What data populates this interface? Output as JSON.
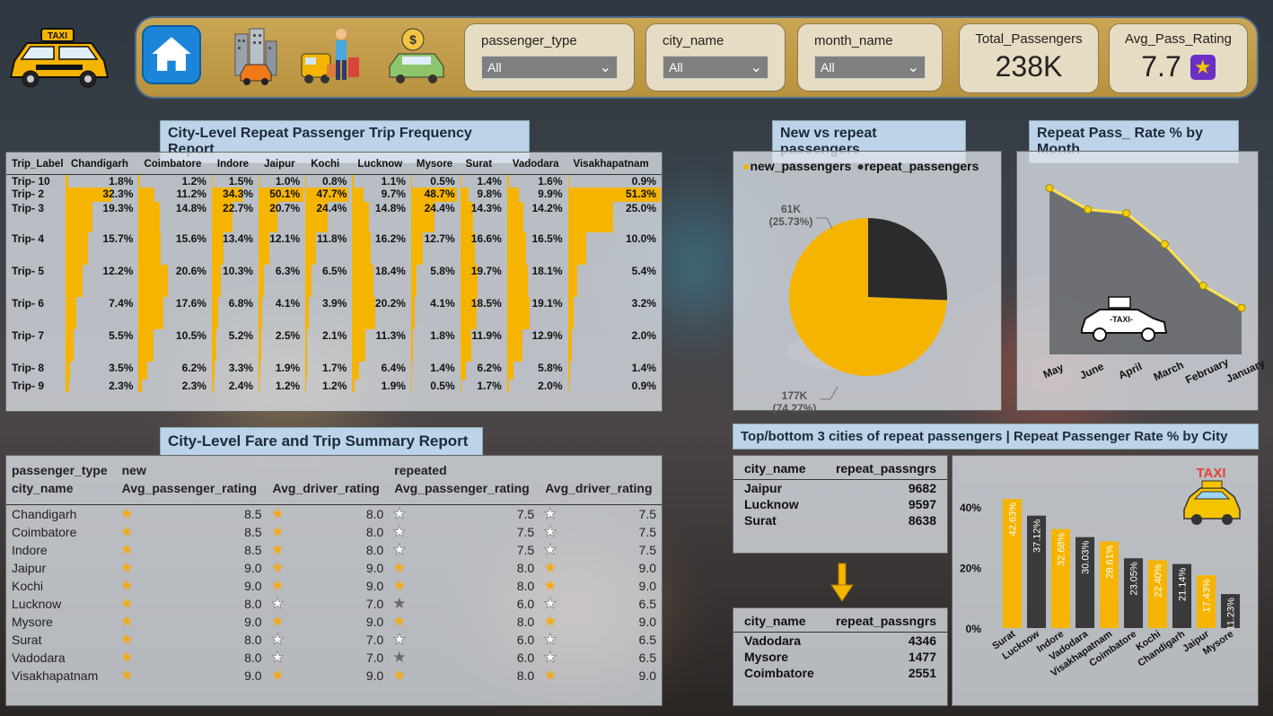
{
  "header": {
    "home_label": "Home",
    "slicers": [
      {
        "label": "passenger_type",
        "value": "All"
      },
      {
        "label": "city_name",
        "value": "All"
      },
      {
        "label": "month_name",
        "value": "All"
      }
    ],
    "kpis": [
      {
        "label": "Total_Passengers",
        "value": "238K"
      },
      {
        "label": "Avg_Pass_Rating",
        "value": "7.7"
      }
    ]
  },
  "freq_report": {
    "title": "City-Level Repeat Passenger Trip Frequency Report",
    "columns": [
      "Trip_Label",
      "Chandigarh",
      "Coimbatore",
      "Indore",
      "Jaipur",
      "Kochi",
      "Lucknow",
      "Mysore",
      "Surat",
      "Vadodara",
      "Visakhapatnam"
    ],
    "rows": [
      {
        "label": "Trip- 10",
        "values": [
          "1.8%",
          "1.2%",
          "1.5%",
          "1.0%",
          "0.8%",
          "1.1%",
          "0.5%",
          "1.4%",
          "1.6%",
          "0.9%"
        ]
      },
      {
        "label": "Trip- 2",
        "values": [
          "32.3%",
          "11.2%",
          "34.3%",
          "50.1%",
          "47.7%",
          "9.7%",
          "48.7%",
          "9.8%",
          "9.9%",
          "51.3%"
        ]
      },
      {
        "label": "Trip- 3",
        "values": [
          "19.3%",
          "14.8%",
          "22.7%",
          "20.7%",
          "24.4%",
          "14.8%",
          "24.4%",
          "14.3%",
          "14.2%",
          "25.0%"
        ]
      },
      {
        "label": "Trip- 4",
        "values": [
          "15.7%",
          "15.6%",
          "13.4%",
          "12.1%",
          "11.8%",
          "16.2%",
          "12.7%",
          "16.6%",
          "16.5%",
          "10.0%"
        ]
      },
      {
        "label": "Trip- 5",
        "values": [
          "12.2%",
          "20.6%",
          "10.3%",
          "6.3%",
          "6.5%",
          "18.4%",
          "5.8%",
          "19.7%",
          "18.1%",
          "5.4%"
        ]
      },
      {
        "label": "Trip- 6",
        "values": [
          "7.4%",
          "17.6%",
          "6.8%",
          "4.1%",
          "3.9%",
          "20.2%",
          "4.1%",
          "18.5%",
          "19.1%",
          "3.2%"
        ]
      },
      {
        "label": "Trip- 7",
        "values": [
          "5.5%",
          "10.5%",
          "5.2%",
          "2.5%",
          "2.1%",
          "11.3%",
          "1.8%",
          "11.9%",
          "12.9%",
          "2.0%"
        ]
      },
      {
        "label": "Trip- 8",
        "values": [
          "3.5%",
          "6.2%",
          "3.3%",
          "1.9%",
          "1.7%",
          "6.4%",
          "1.4%",
          "6.2%",
          "5.8%",
          "1.4%"
        ]
      },
      {
        "label": "Trip- 9",
        "values": [
          "2.3%",
          "2.3%",
          "2.4%",
          "1.2%",
          "1.2%",
          "1.9%",
          "0.5%",
          "1.7%",
          "2.0%",
          "0.9%"
        ]
      }
    ]
  },
  "fare_report": {
    "title": "City-Level Fare and Trip Summary Report",
    "group_header": "passenger_type",
    "groups": [
      "new",
      "repeated"
    ],
    "row_header": "city_name",
    "metrics": [
      "Avg_passenger_rating",
      "Avg_driver_rating",
      "Avg_passenger_rating",
      "Avg_driver_rating"
    ],
    "rows": [
      {
        "city": "Chandigarh",
        "v": [
          "8.5",
          "8.0",
          "7.5",
          "7.5"
        ],
        "s": [
          "full",
          "full",
          "half",
          "half"
        ]
      },
      {
        "city": "Coimbatore",
        "v": [
          "8.5",
          "8.0",
          "7.5",
          "7.5"
        ],
        "s": [
          "full",
          "full",
          "half",
          "half"
        ]
      },
      {
        "city": "Indore",
        "v": [
          "8.5",
          "8.0",
          "7.5",
          "7.5"
        ],
        "s": [
          "full",
          "full",
          "half",
          "half"
        ]
      },
      {
        "city": "Jaipur",
        "v": [
          "9.0",
          "9.0",
          "8.0",
          "9.0"
        ],
        "s": [
          "full",
          "full",
          "full",
          "full"
        ]
      },
      {
        "city": "Kochi",
        "v": [
          "9.0",
          "9.0",
          "8.0",
          "9.0"
        ],
        "s": [
          "full",
          "full",
          "full",
          "full"
        ]
      },
      {
        "city": "Lucknow",
        "v": [
          "8.0",
          "7.0",
          "6.0",
          "6.5"
        ],
        "s": [
          "full",
          "half",
          "dark",
          "half"
        ]
      },
      {
        "city": "Mysore",
        "v": [
          "9.0",
          "9.0",
          "8.0",
          "9.0"
        ],
        "s": [
          "full",
          "full",
          "full",
          "full"
        ]
      },
      {
        "city": "Surat",
        "v": [
          "8.0",
          "7.0",
          "6.0",
          "6.5"
        ],
        "s": [
          "full",
          "half",
          "half",
          "half"
        ]
      },
      {
        "city": "Vadodara",
        "v": [
          "8.0",
          "7.0",
          "6.0",
          "6.5"
        ],
        "s": [
          "full",
          "half",
          "dark",
          "half"
        ]
      },
      {
        "city": "Visakhapatnam",
        "v": [
          "9.0",
          "9.0",
          "8.0",
          "9.0"
        ],
        "s": [
          "full",
          "full",
          "full",
          "full"
        ]
      }
    ]
  },
  "pie": {
    "title": "New vs repeat passengers",
    "legend": [
      "new_passengers",
      "repeat_passengers"
    ],
    "labels": [
      {
        "value": "177K",
        "pct": "(74.27%)"
      },
      {
        "value": "61K",
        "pct": "(25.73%)"
      }
    ]
  },
  "line": {
    "title": "Repeat Pass_ Rate % by Month",
    "taxi_label": "-TAXI-"
  },
  "top_bottom": {
    "title": "Top/bottom 3 cities of repeat passengers  | Repeat Passenger Rate % by City",
    "headers": [
      "city_name",
      "repeat_passngrs"
    ],
    "top": [
      {
        "city": "Jaipur",
        "value": "9682"
      },
      {
        "city": "Lucknow",
        "value": "9597"
      },
      {
        "city": "Surat",
        "value": "8638"
      }
    ],
    "bottom": [
      {
        "city": "Vadodara",
        "value": "4346"
      },
      {
        "city": "Mysore",
        "value": "1477"
      },
      {
        "city": "Coimbatore",
        "value": "2551"
      }
    ]
  },
  "bar_logo": "TAXI",
  "chart_data": [
    {
      "type": "pie",
      "categories": [
        "new_passengers",
        "repeat_passengers"
      ],
      "values": [
        177,
        61
      ],
      "percentages": [
        74.27,
        25.73
      ],
      "colors": [
        "#f5b400",
        "#2b2b2b"
      ],
      "title": "New vs repeat passengers",
      "legend": "top"
    },
    {
      "type": "area",
      "title": "Repeat Pass_ Rate % by Month",
      "categories": [
        "May",
        "June",
        "April",
        "March",
        "February",
        "January"
      ],
      "values": [
        37.5,
        34.6,
        34.1,
        29.9,
        24.3,
        21.3
      ],
      "ylim": [
        15,
        40
      ],
      "colors": [
        "#ffe14a"
      ]
    },
    {
      "type": "bar",
      "title": "Repeat Passenger Rate % by City",
      "categories": [
        "Surat",
        "Lucknow",
        "Indore",
        "Vadodara",
        "Visakhapatnam",
        "Coimbatore",
        "Kochi",
        "Chandigarh",
        "Jaipur",
        "Mysore"
      ],
      "values": [
        42.63,
        37.12,
        32.68,
        30.03,
        28.61,
        23.05,
        22.4,
        21.14,
        17.43,
        11.23
      ],
      "labels": [
        "42.63%",
        "37.12%",
        "32.68%",
        "30.03%",
        "28.61%",
        "23.05%",
        "22.40%",
        "21.14%",
        "17.43%",
        "11.23%"
      ],
      "colors": [
        "#f5b400",
        "#3a3a3a"
      ],
      "yticks": [
        "0%",
        "20%",
        "40%"
      ],
      "ylim": [
        0,
        48
      ]
    }
  ]
}
